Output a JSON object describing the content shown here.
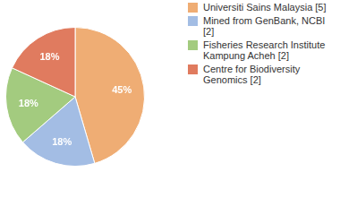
{
  "chart_data": {
    "type": "pie",
    "categories": [
      "Universiti Sains Malaysia [5]",
      "Mined from GenBank, NCBI [2]",
      "Fisheries Research Institute Kampung Acheh [2]",
      "Centre for Biodiversity Genomics [2]"
    ],
    "values": [
      45,
      18,
      18,
      18
    ],
    "value_labels": [
      "45%",
      "18%",
      "18%",
      "18%"
    ],
    "colors": [
      "#efad74",
      "#a3bde4",
      "#a3cb7f",
      "#e07b5f"
    ],
    "data_labels": true,
    "legend": "right"
  }
}
